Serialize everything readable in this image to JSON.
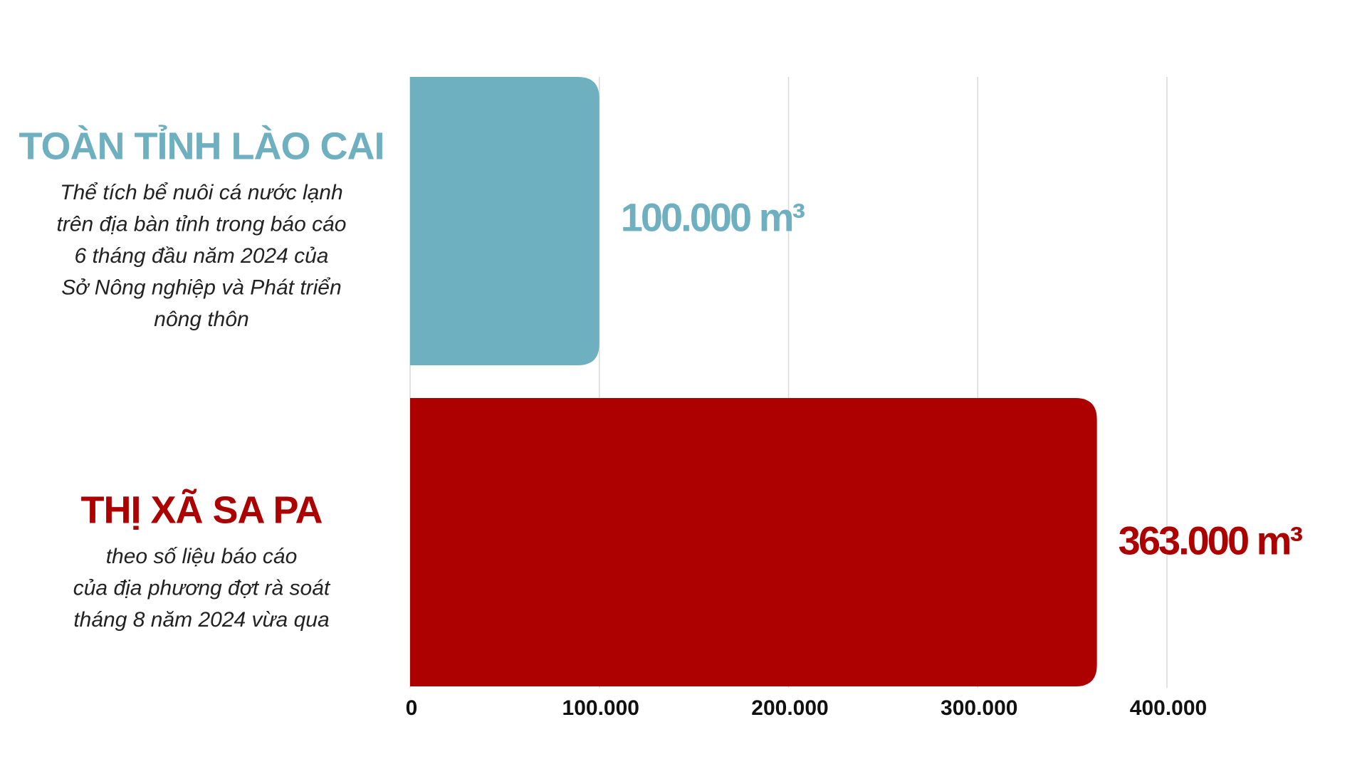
{
  "chart_data": {
    "type": "bar",
    "orientation": "horizontal",
    "categories": [
      "TOÀN TỈNH LÀO CAI",
      "THỊ XÃ SA PA"
    ],
    "category_notes": [
      [
        "Thể tích bể nuôi cá nước lạnh",
        "trên địa bàn tỉnh trong báo cáo",
        "6 tháng đầu năm 2024 của",
        "Sở Nông nghiệp và Phát triển",
        "nông thôn"
      ],
      [
        "theo số liệu báo cáo",
        "của địa phương đợt rà soát",
        "tháng 8 năm 2024 vừa qua"
      ]
    ],
    "values": [
      100000,
      363000
    ],
    "value_labels": [
      "100.000 m³",
      "363.000 m³"
    ],
    "colors": [
      "#6fb0c0",
      "#ad0000"
    ],
    "xlim": [
      0,
      400000
    ],
    "xticks": [
      0,
      {
        "value": 100000,
        "label": "100.000"
      },
      {
        "value": 200000,
        "label": "200.000"
      },
      {
        "value": 300000,
        "label": "300.000"
      },
      {
        "value": 400000,
        "label": "400.000"
      }
    ],
    "grid": true
  }
}
